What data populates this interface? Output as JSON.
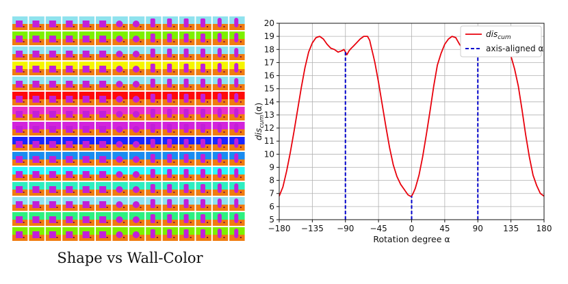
{
  "panel_caption": "Shape vs Wall-Color",
  "image_grid": {
    "rows": 15,
    "cols": 14,
    "wall_colors": [
      "#8fe2ee",
      "#7cf000",
      "#8fe2ee",
      "#f5f500",
      "#8fe2ee",
      "#ff0a0a",
      "#e830c8",
      "#d224dc",
      "#1a28ff",
      "#1a8cf0",
      "#2ef8f8",
      "#2eeec0",
      "#8fe2ee",
      "#2ef080",
      "#7cf000"
    ],
    "floor_color": "#f07c10",
    "object_color": "#c21fd8",
    "object_shapes": [
      "cube",
      "cube",
      "cube",
      "cube",
      "cube",
      "cube",
      "sphere",
      "sphere",
      "cylinder",
      "cylinder",
      "cylinder",
      "cylinder",
      "capsule",
      "capsule"
    ]
  },
  "chart_data": {
    "type": "line",
    "xlabel": "Rotation degree α",
    "ylabel": "dis_cum(α)",
    "ylabel_main": "dis",
    "ylabel_sub": "cum",
    "ylabel_paren": "(α)",
    "xlim": [
      -180,
      180
    ],
    "ylim": [
      5,
      20
    ],
    "xticks": [
      -180,
      -135,
      -90,
      -45,
      0,
      45,
      90,
      135,
      180
    ],
    "xtick_labels": [
      "−180",
      "−135",
      "−90",
      "−45",
      "0",
      "45",
      "90",
      "135",
      "180"
    ],
    "yticks": [
      5,
      6,
      7,
      8,
      9,
      10,
      11,
      12,
      13,
      14,
      15,
      16,
      17,
      18,
      19,
      20
    ],
    "grid": true,
    "legend_position": "top-right",
    "series": [
      {
        "name": "dis_cum",
        "legend_main": "dis",
        "legend_sub": "cum",
        "color": "#e8000b",
        "x": [
          -180,
          -175,
          -170,
          -165,
          -160,
          -155,
          -150,
          -145,
          -140,
          -135,
          -130,
          -125,
          -120,
          -115,
          -110,
          -105,
          -100,
          -95,
          -92,
          -90,
          -88,
          -85,
          -82,
          -80,
          -75,
          -70,
          -65,
          -60,
          -57,
          -55,
          -52,
          -50,
          -45,
          -40,
          -35,
          -30,
          -25,
          -20,
          -15,
          -10,
          -5,
          -2,
          0,
          2,
          5,
          10,
          15,
          20,
          25,
          30,
          35,
          40,
          45,
          50,
          55,
          60,
          62,
          65,
          70,
          75,
          80,
          85,
          88,
          90,
          92,
          95,
          100,
          105,
          110,
          115,
          120,
          125,
          130,
          135,
          140,
          145,
          150,
          155,
          160,
          165,
          170,
          175,
          180
        ],
        "y": [
          6.8,
          7.5,
          8.7,
          10.1,
          11.7,
          13.4,
          15.1,
          16.6,
          17.8,
          18.5,
          18.9,
          19.0,
          18.8,
          18.4,
          18.1,
          18.0,
          17.8,
          17.9,
          18.0,
          17.8,
          17.6,
          17.9,
          18.1,
          18.2,
          18.5,
          18.8,
          19.0,
          19.0,
          18.7,
          18.2,
          17.5,
          17.0,
          15.5,
          13.8,
          12.1,
          10.5,
          9.2,
          8.3,
          7.7,
          7.3,
          6.9,
          6.8,
          6.8,
          7.0,
          7.4,
          8.4,
          9.8,
          11.5,
          13.3,
          15.2,
          16.8,
          17.7,
          18.4,
          18.8,
          19.0,
          18.9,
          18.7,
          18.4,
          18.0,
          17.9,
          17.8,
          17.8,
          17.7,
          17.6,
          17.8,
          18.2,
          18.3,
          18.4,
          18.5,
          18.6,
          18.6,
          18.4,
          18.0,
          17.5,
          16.5,
          15.2,
          13.4,
          11.5,
          9.8,
          8.4,
          7.6,
          7.0,
          6.8
        ]
      },
      {
        "name": "axis-aligned α",
        "color": "#0000cc",
        "style": "dashed",
        "x": [
          -90,
          0,
          90
        ]
      }
    ]
  }
}
